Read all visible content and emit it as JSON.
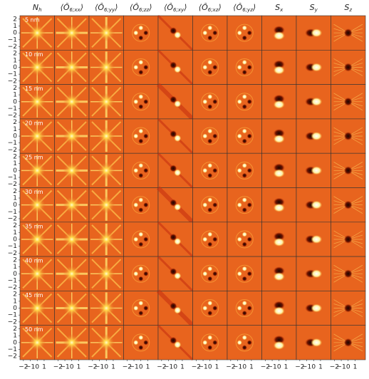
{
  "chart_data": {
    "type": "image-grid",
    "columns": [
      {
        "base": "N",
        "sub": "h",
        "tail": ""
      },
      {
        "base": "⟨Ô",
        "sub": "6;xx",
        "tail": "⟩"
      },
      {
        "base": "⟨Ô",
        "sub": "6;yy",
        "tail": "⟩"
      },
      {
        "base": "⟨Ô",
        "sub": "6;zz",
        "tail": "⟩"
      },
      {
        "base": "⟨Ô",
        "sub": "6;xy",
        "tail": "⟩"
      },
      {
        "base": "⟨Ô",
        "sub": "6;xz",
        "tail": "⟩"
      },
      {
        "base": "⟨Ô",
        "sub": "6;yz",
        "tail": "⟩"
      },
      {
        "base": "S",
        "sub": "x",
        "tail": ""
      },
      {
        "base": "S",
        "sub": "y",
        "tail": ""
      },
      {
        "base": "S",
        "sub": "z",
        "tail": ""
      }
    ],
    "rows": [
      "5 nm",
      "10 nm",
      "15 nm",
      "20 nm",
      "25 nm",
      "30 nm",
      "35 nm",
      "40 nm",
      "45 nm",
      "50 nm"
    ],
    "xlim": [
      -2.5,
      2.5
    ],
    "xticks": [
      {
        "value": -2,
        "label": "−2"
      },
      {
        "value": -1,
        "label": "−1"
      },
      0,
      1
    ],
    "ylim": [
      -2.5,
      2.5
    ],
    "yticks": [
      2,
      1,
      0,
      {
        "value": -1,
        "label": "−1"
      },
      {
        "value": -2,
        "label": "−2"
      }
    ]
  }
}
